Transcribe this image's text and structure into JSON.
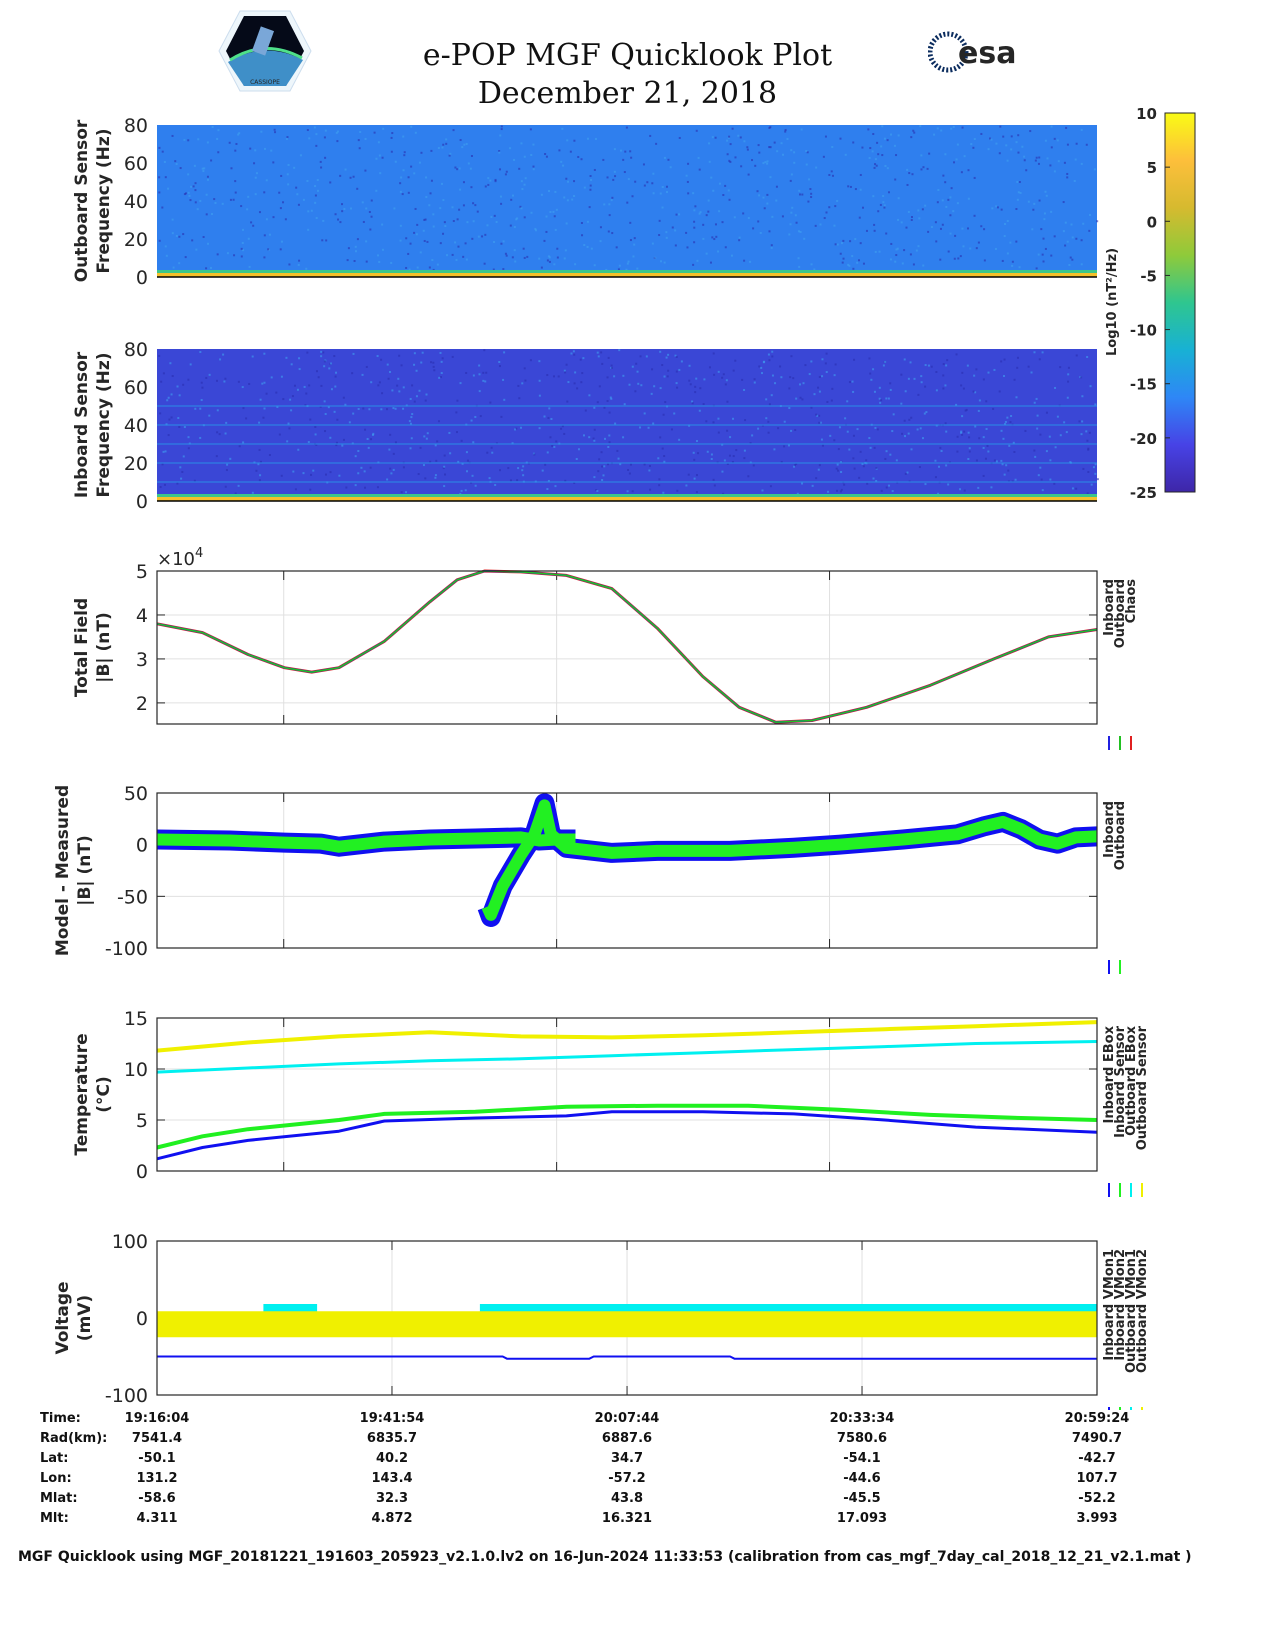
{
  "header": {
    "title": "e-POP MGF Quicklook Plot",
    "date": "December 21, 2018",
    "logo_left_text": "CASSIOPE",
    "logo_right_text": "esa"
  },
  "colorbar": {
    "label": "Log10 (nT²/Hz)",
    "ticks": [
      "10",
      "5",
      "0",
      "-5",
      "-10",
      "-15",
      "-20",
      "-25"
    ],
    "range": [
      -25,
      10
    ],
    "colormap": [
      "#3e26a8",
      "#4743e6",
      "#2e87f6",
      "#18b1d4",
      "#2fc68f",
      "#8fca3a",
      "#d6ba2f",
      "#fdbf3b",
      "#f9fb15"
    ]
  },
  "chart_data": [
    {
      "type": "heatmap",
      "id": "outboard-spectrogram",
      "ylabel": [
        "Outboard Sensor",
        "Frequency (Hz)"
      ],
      "yticks": [
        "0",
        "20",
        "40",
        "60",
        "80"
      ],
      "ylim": [
        0,
        80
      ],
      "background": "#2f7fee",
      "low_band_color": "#f5c02a"
    },
    {
      "type": "heatmap",
      "id": "inboard-spectrogram",
      "ylabel": [
        "Inboard Sensor",
        "Frequency (Hz)"
      ],
      "yticks": [
        "0",
        "20",
        "40",
        "60",
        "80"
      ],
      "ylim": [
        0,
        80
      ],
      "background": "#3a47d6",
      "low_band_color": "#f5c02a",
      "harmonics_hz": [
        10,
        20,
        30,
        40,
        50
      ]
    },
    {
      "type": "line",
      "id": "total-field",
      "ylabel": [
        "Total Field",
        "|B| (nT)"
      ],
      "exponent": "×10",
      "exponent_power": "4",
      "yticks": [
        2,
        3,
        4,
        5
      ],
      "ylim": [
        1.52,
        5.0
      ],
      "xlim_min": [
        0,
        103.33
      ],
      "grid_min": [
        13.93,
        43.93,
        73.93
      ],
      "legend": [
        "Inboard",
        "Outboard",
        "Chaos"
      ],
      "series": [
        {
          "name": "Chaos",
          "color": "#e02020",
          "width": 3,
          "points": [
            [
              0,
              3.8
            ],
            [
              5,
              3.6
            ],
            [
              10,
              3.1
            ],
            [
              14,
              2.8
            ],
            [
              17,
              2.7
            ],
            [
              20,
              2.8
            ],
            [
              25,
              3.4
            ],
            [
              30,
              4.3
            ],
            [
              33,
              4.8
            ],
            [
              36,
              5.0
            ],
            [
              40,
              4.98
            ],
            [
              45,
              4.9
            ],
            [
              50,
              4.6
            ],
            [
              55,
              3.7
            ],
            [
              60,
              2.6
            ],
            [
              64,
              1.9
            ],
            [
              68,
              1.56
            ],
            [
              72,
              1.6
            ],
            [
              78,
              1.9
            ],
            [
              85,
              2.4
            ],
            [
              92,
              3.0
            ],
            [
              98,
              3.5
            ],
            [
              103.33,
              3.67
            ]
          ]
        },
        {
          "name": "Inboard",
          "color": "#2020e0",
          "width": 2,
          "points": [
            [
              0,
              3.8
            ],
            [
              5,
              3.6
            ],
            [
              10,
              3.1
            ],
            [
              14,
              2.8
            ],
            [
              17,
              2.7
            ],
            [
              20,
              2.8
            ],
            [
              25,
              3.4
            ],
            [
              30,
              4.3
            ],
            [
              33,
              4.8
            ],
            [
              36,
              5.0
            ],
            [
              40,
              4.98
            ],
            [
              45,
              4.9
            ],
            [
              50,
              4.6
            ],
            [
              55,
              3.7
            ],
            [
              60,
              2.6
            ],
            [
              64,
              1.9
            ],
            [
              68,
              1.56
            ],
            [
              72,
              1.6
            ],
            [
              78,
              1.9
            ],
            [
              85,
              2.4
            ],
            [
              92,
              3.0
            ],
            [
              98,
              3.5
            ],
            [
              103.33,
              3.67
            ]
          ]
        },
        {
          "name": "Outboard",
          "color": "#22c022",
          "width": 1.5,
          "points": [
            [
              0,
              3.8
            ],
            [
              5,
              3.6
            ],
            [
              10,
              3.1
            ],
            [
              14,
              2.8
            ],
            [
              17,
              2.7
            ],
            [
              20,
              2.8
            ],
            [
              25,
              3.4
            ],
            [
              30,
              4.3
            ],
            [
              33,
              4.8
            ],
            [
              36,
              5.0
            ],
            [
              40,
              4.98
            ],
            [
              45,
              4.9
            ],
            [
              50,
              4.6
            ],
            [
              55,
              3.7
            ],
            [
              60,
              2.6
            ],
            [
              64,
              1.9
            ],
            [
              68,
              1.56
            ],
            [
              72,
              1.6
            ],
            [
              78,
              1.9
            ],
            [
              85,
              2.4
            ],
            [
              92,
              3.0
            ],
            [
              98,
              3.5
            ],
            [
              103.33,
              3.67
            ]
          ]
        }
      ]
    },
    {
      "type": "line",
      "id": "model-minus-measured",
      "ylabel": [
        "Model - Measured",
        "|B| (nT)"
      ],
      "yticks": [
        -100,
        -50,
        0,
        50
      ],
      "ylim": [
        -100,
        50
      ],
      "xlim_min": [
        0,
        103.33
      ],
      "grid_min": [
        13.93,
        43.93,
        73.93
      ],
      "legend": [
        "Inboard",
        "Outboard"
      ],
      "series": [
        {
          "name": "Inboard",
          "color": "#1010f0",
          "width": 20,
          "segments": [
            [
              [
                0,
                5
              ],
              [
                8,
                4
              ],
              [
                14,
                2
              ],
              [
                18,
                1
              ],
              [
                20,
                -2
              ],
              [
                25,
                3
              ],
              [
                30,
                5
              ],
              [
                35,
                6
              ],
              [
                40,
                7
              ],
              [
                42,
                4
              ],
              [
                44,
                5
              ],
              [
                46,
                5
              ]
            ],
            [
              [
                36.3,
                -60
              ],
              [
                36.7,
                -70
              ],
              [
                38,
                -40
              ],
              [
                40,
                -10
              ],
              [
                41.5,
                10
              ],
              [
                42.6,
                40
              ],
              [
                43.3,
                10
              ],
              [
                45,
                -3
              ],
              [
                50,
                -8
              ],
              [
                55,
                -6
              ],
              [
                63,
                -6
              ],
              [
                70,
                -3
              ],
              [
                75,
                0
              ],
              [
                82,
                5
              ],
              [
                88,
                10
              ],
              [
                91,
                18
              ],
              [
                93,
                22
              ],
              [
                95,
                15
              ],
              [
                97,
                5
              ],
              [
                99,
                1
              ],
              [
                101,
                7
              ],
              [
                103.33,
                8
              ]
            ]
          ]
        },
        {
          "name": "Outboard",
          "color": "#22f022",
          "width": 12,
          "segments": [
            [
              [
                0,
                5
              ],
              [
                8,
                4
              ],
              [
                14,
                2
              ],
              [
                18,
                1
              ],
              [
                20,
                -2
              ],
              [
                25,
                3
              ],
              [
                30,
                5
              ],
              [
                35,
                6
              ],
              [
                40,
                7
              ],
              [
                42,
                4
              ],
              [
                44,
                5
              ],
              [
                46,
                5
              ]
            ],
            [
              [
                36.3,
                -60
              ],
              [
                36.7,
                -68
              ],
              [
                38,
                -40
              ],
              [
                40,
                -10
              ],
              [
                41.5,
                10
              ],
              [
                42.6,
                38
              ],
              [
                43.3,
                10
              ],
              [
                45,
                -3
              ],
              [
                50,
                -8
              ],
              [
                55,
                -6
              ],
              [
                63,
                -6
              ],
              [
                70,
                -3
              ],
              [
                75,
                0
              ],
              [
                82,
                5
              ],
              [
                88,
                10
              ],
              [
                91,
                18
              ],
              [
                93,
                22
              ],
              [
                95,
                15
              ],
              [
                97,
                5
              ],
              [
                99,
                1
              ],
              [
                101,
                7
              ],
              [
                103.33,
                8
              ]
            ]
          ]
        }
      ]
    },
    {
      "type": "line",
      "id": "temperature",
      "ylabel": [
        "Temperature",
        "(°C)"
      ],
      "yticks": [
        0,
        5,
        10,
        15
      ],
      "ylim": [
        0,
        15
      ],
      "xlim_min": [
        0,
        103.33
      ],
      "grid_min": [
        13.93,
        43.93,
        73.93
      ],
      "legend": [
        "Inboard EBox",
        "Inboard Sensor",
        "Outboard EBox",
        "Outboard Sensor"
      ],
      "series": [
        {
          "name": "Outboard Sensor",
          "color": "#f0f000",
          "width": 4,
          "points": [
            [
              0,
              11.8
            ],
            [
              10,
              12.6
            ],
            [
              20,
              13.2
            ],
            [
              30,
              13.6
            ],
            [
              40,
              13.2
            ],
            [
              50,
              13.1
            ],
            [
              60,
              13.3
            ],
            [
              70,
              13.6
            ],
            [
              80,
              13.9
            ],
            [
              90,
              14.2
            ],
            [
              103.33,
              14.6
            ]
          ]
        },
        {
          "name": "Outboard EBox",
          "color": "#00f0f0",
          "width": 3,
          "points": [
            [
              0,
              9.7
            ],
            [
              10,
              10.1
            ],
            [
              20,
              10.5
            ],
            [
              30,
              10.8
            ],
            [
              40,
              11.0
            ],
            [
              50,
              11.3
            ],
            [
              60,
              11.6
            ],
            [
              70,
              11.9
            ],
            [
              80,
              12.2
            ],
            [
              90,
              12.5
            ],
            [
              103.33,
              12.7
            ]
          ]
        },
        {
          "name": "Inboard Sensor",
          "color": "#20f020",
          "width": 4,
          "points": [
            [
              0,
              2.3
            ],
            [
              5,
              3.4
            ],
            [
              10,
              4.1
            ],
            [
              20,
              5.0
            ],
            [
              25,
              5.6
            ],
            [
              35,
              5.8
            ],
            [
              45,
              6.3
            ],
            [
              55,
              6.4
            ],
            [
              65,
              6.4
            ],
            [
              75,
              6.0
            ],
            [
              85,
              5.5
            ],
            [
              95,
              5.2
            ],
            [
              103.33,
              5.0
            ]
          ]
        },
        {
          "name": "Inboard EBox",
          "color": "#1010f0",
          "width": 3,
          "points": [
            [
              0,
              1.2
            ],
            [
              5,
              2.3
            ],
            [
              10,
              3.0
            ],
            [
              20,
              3.9
            ],
            [
              25,
              4.9
            ],
            [
              35,
              5.2
            ],
            [
              45,
              5.4
            ],
            [
              50,
              5.8
            ],
            [
              60,
              5.8
            ],
            [
              70,
              5.6
            ],
            [
              80,
              5.0
            ],
            [
              90,
              4.3
            ],
            [
              103.33,
              3.8
            ]
          ]
        }
      ]
    },
    {
      "type": "line",
      "id": "voltage",
      "ylabel": [
        "Voltage",
        "(mV)"
      ],
      "yticks": [
        -100,
        0,
        100
      ],
      "ylim": [
        -100,
        100
      ],
      "xlim_min": [
        0,
        103.33
      ],
      "grid_min": [
        25.83,
        51.67,
        77.5
      ],
      "legend": [
        "Inboard VMon1",
        "Inboard VMon2",
        "Outboard VMon1",
        "Outboard VMon2"
      ],
      "series": [
        {
          "name": "Outboard VMon1",
          "color": "#00f0f0",
          "width": 8,
          "segments": [
            [
              [
                11.7,
                13
              ],
              [
                17.6,
                13
              ]
            ],
            [
              [
                35.5,
                13
              ],
              [
                103.33,
                13
              ]
            ]
          ]
        },
        {
          "name": "Inboard VMon2",
          "color": "#20f020",
          "width": 6,
          "points": [
            [
              0,
              -20
            ],
            [
              103.33,
              -20
            ]
          ]
        },
        {
          "name": "Outboard VMon2",
          "color": "#f0f000",
          "width": 26,
          "points": [
            [
              0,
              -8
            ],
            [
              103.33,
              -8
            ]
          ]
        },
        {
          "name": "Inboard VMon1",
          "color": "#1010f0",
          "width": 2,
          "points": [
            [
              0,
              -50
            ],
            [
              38,
              -50
            ],
            [
              38.5,
              -53
            ],
            [
              47.5,
              -53
            ],
            [
              48,
              -50
            ],
            [
              63,
              -50
            ],
            [
              63.5,
              -53
            ],
            [
              103.33,
              -53
            ]
          ]
        }
      ]
    }
  ],
  "table": {
    "labels": [
      "Time:",
      "Rad(km):",
      "Lat:",
      "Lon:",
      "Mlat:",
      "Mlt:"
    ],
    "columns": [
      [
        "19:16:04",
        "7541.4",
        "-50.1",
        "131.2",
        "-58.6",
        "4.311"
      ],
      [
        "19:41:54",
        "6835.7",
        "40.2",
        "143.4",
        "32.3",
        "4.872"
      ],
      [
        "20:07:44",
        "6887.6",
        "34.7",
        "-57.2",
        "43.8",
        "16.321"
      ],
      [
        "20:33:34",
        "7580.6",
        "-54.1",
        "-44.6",
        "-45.5",
        "17.093"
      ],
      [
        "20:59:24",
        "7490.7",
        "-42.7",
        "107.7",
        "-52.2",
        "3.993"
      ]
    ]
  },
  "footer": "MGF Quicklook using MGF_20181221_191603_205923_v2.1.0.lv2 on 16-Jun-2024 11:33:53 (calibration from cas_mgf_7day_cal_2018_12_21_v2.1.mat )"
}
